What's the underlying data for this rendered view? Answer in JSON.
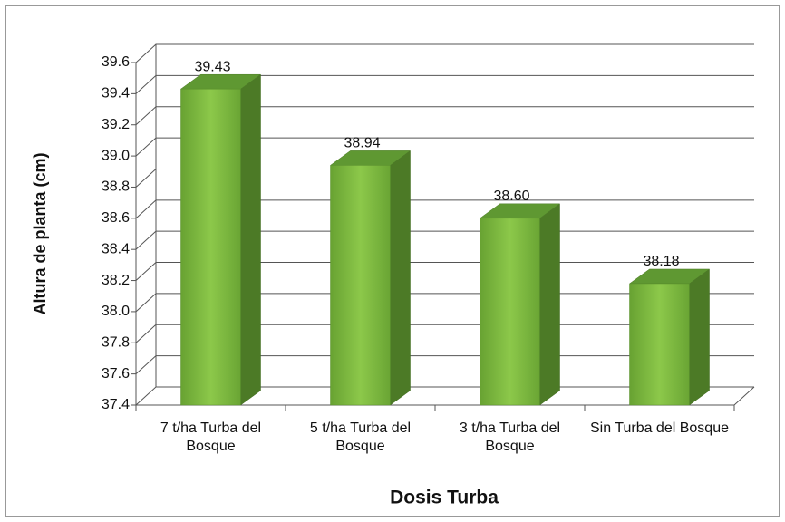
{
  "chart_data": {
    "type": "bar3d",
    "categories": [
      "7 t/ha Turba del Bosque",
      "5 t/ha Turba del Bosque",
      "3 t/ha Turba del Bosque",
      "Sin Turba del Bosque"
    ],
    "values": [
      39.43,
      38.94,
      38.6,
      38.18
    ],
    "value_labels": [
      "39.43",
      "38.94",
      "38.60",
      "38.18"
    ],
    "color": "#78b843",
    "ylim": [
      37.4,
      39.6
    ],
    "yticks": [
      37.4,
      37.6,
      37.8,
      {
        "value": 38,
        "label": "38.0"
      },
      38.2,
      38.4,
      38.6,
      38.8,
      {
        "value": 39,
        "label": "39.0"
      },
      39.2,
      39.4,
      39.6
    ],
    "grid": true,
    "y_label": "Altura de planta (cm)",
    "x_label": "Dosis Turba"
  }
}
